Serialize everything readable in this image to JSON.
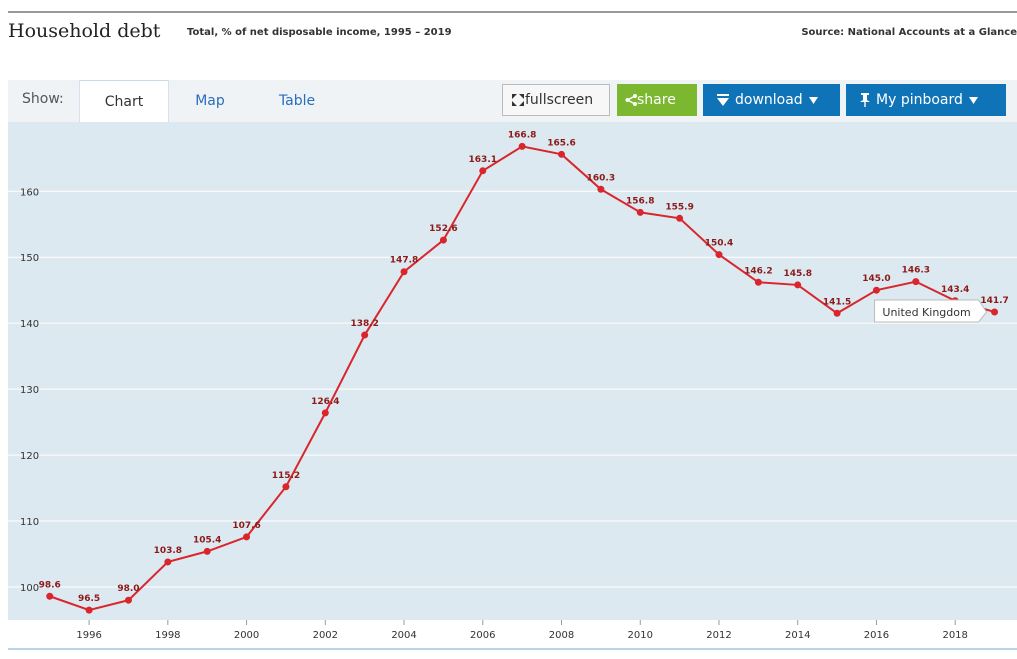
{
  "header": {
    "title": "Household debt",
    "subtitle": "Total, % of net disposable income, 1995 – 2019",
    "source": "Source: National Accounts at a Glance"
  },
  "ui": {
    "show": "Show:",
    "tabs": [
      "Chart",
      "Map",
      "Table"
    ],
    "buttons": [
      "fullscreen",
      "share",
      "download",
      "My pinboard"
    ]
  },
  "chart_data": {
    "type": "line",
    "x": [
      1995,
      1996,
      1997,
      1998,
      1999,
      2000,
      2001,
      2002,
      2003,
      2004,
      2005,
      2006,
      2007,
      2008,
      2009,
      2010,
      2011,
      2012,
      2013,
      2014,
      2015,
      2016,
      2017,
      2018,
      2019
    ],
    "series": [
      {
        "name": "United Kingdom",
        "color": "#d9262c",
        "values": [
          98.6,
          96.5,
          98.0,
          103.8,
          105.4,
          107.6,
          115.2,
          126.4,
          138.2,
          147.8,
          152.6,
          163.1,
          166.8,
          165.6,
          160.3,
          156.8,
          155.9,
          150.4,
          146.2,
          145.8,
          141.5,
          145.0,
          146.3,
          143.4,
          141.7
        ],
        "value_labels": [
          "98.6",
          "96.5",
          "98.0",
          "103.8",
          "105.4",
          "107.6",
          "115.2",
          "126.4",
          "138.2",
          "147.8",
          "152.6",
          "163.1",
          "166.8",
          "165.6",
          "160.3",
          "156.8",
          "155.9",
          "150.4",
          "146.2",
          "145.8",
          "141.5",
          "145.0",
          "146.3",
          "143.4",
          "141.7"
        ]
      }
    ],
    "xlim": [
      1993.94,
      2019.57
    ],
    "xticks": [
      1996,
      1998,
      2000,
      2002,
      2004,
      2006,
      2008,
      2010,
      2012,
      2014,
      2016,
      2018
    ],
    "ylim": [
      95,
      170.5
    ],
    "yticks": [
      100,
      110,
      120,
      130,
      140,
      150,
      160
    ],
    "grid": true
  }
}
